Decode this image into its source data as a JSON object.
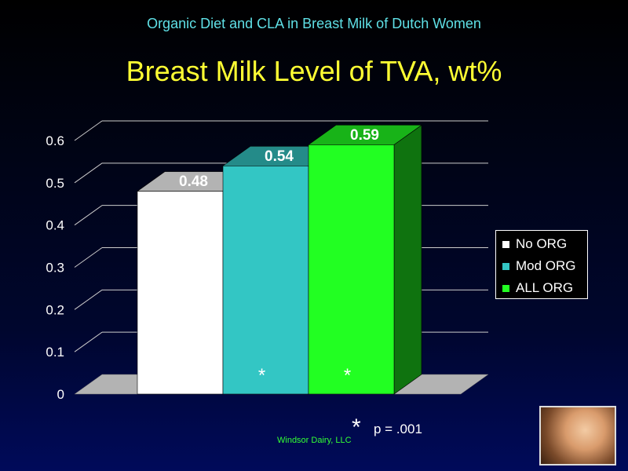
{
  "header": {
    "subtitle": "Organic Diet and CLA in Breast Milk of Dutch Women",
    "title": "Breast Milk Level of TVA, wt%"
  },
  "chart_data": {
    "type": "bar",
    "style": "3d",
    "categories": [
      "No ORG",
      "Mod ORG",
      "ALL ORG"
    ],
    "values": [
      0.48,
      0.54,
      0.59
    ],
    "data_labels": [
      "0.48",
      "0.54",
      "0.59"
    ],
    "colors": [
      "#ffffff",
      "#33c6c4",
      "#22ff22"
    ],
    "significance_markers": [
      "",
      "*",
      "*"
    ],
    "y_ticks": [
      "0",
      "0.1",
      "0.2",
      "0.3",
      "0.4",
      "0.5",
      "0.6"
    ],
    "ylim": [
      0,
      0.6
    ],
    "grid": true,
    "legend_position": "right",
    "title": "Breast Milk Level of TVA, wt%"
  },
  "legend": {
    "items": [
      {
        "label": "No ORG",
        "color": "#ffffff"
      },
      {
        "label": "Mod ORG",
        "color": "#33c6c4"
      },
      {
        "label": "ALL ORG",
        "color": "#22ff22"
      }
    ]
  },
  "footnote": {
    "marker": "*",
    "text": "p = .001"
  },
  "credit": "Windsor Dairy, LLC"
}
